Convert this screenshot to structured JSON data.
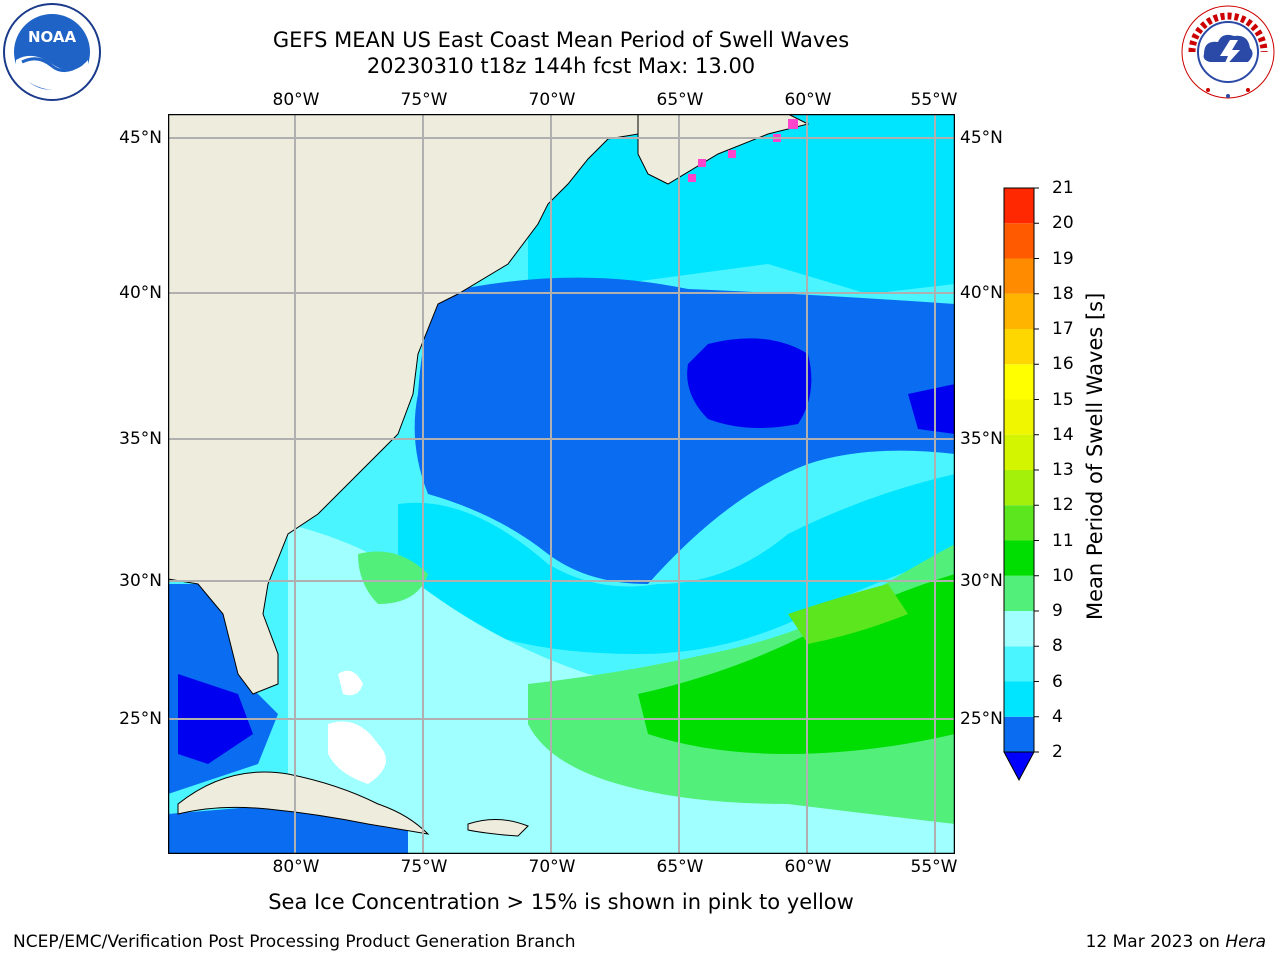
{
  "title": {
    "line1": "GEFS MEAN US East Coast Mean Period of Swell Waves",
    "line2": "20230310 t18z 144h fcst   Max: 13.00"
  },
  "map": {
    "lon_labels": [
      "80°W",
      "75°W",
      "70°W",
      "65°W",
      "60°W",
      "55°W"
    ],
    "lat_labels": [
      "45°N",
      "40°N",
      "35°N",
      "30°N",
      "25°N"
    ],
    "land_color": "#eeeddd",
    "grid_color": "#b0b0b0"
  },
  "colorbar": {
    "title": "Mean Period of Swell Waves [s]",
    "ticks": [
      "2",
      "4",
      "6",
      "8",
      "9",
      "10",
      "11",
      "12",
      "13",
      "14",
      "15",
      "16",
      "17",
      "18",
      "19",
      "20",
      "21"
    ],
    "colors": [
      "#0a6cf0",
      "#00e5ff",
      "#4bf5ff",
      "#a0ffff",
      "#52f07a",
      "#00dd00",
      "#5be61e",
      "#a5f00a",
      "#d4f500",
      "#f0f500",
      "#ffff00",
      "#ffd700",
      "#ffb400",
      "#ff8c00",
      "#ff5a00",
      "#ff2800",
      "#ff0000"
    ],
    "under_color": "#0000ff"
  },
  "footer": {
    "note": "Sea Ice Concentration > 15% is shown in pink to yellow",
    "credit_left": "NCEP/EMC/Verification Post Processing Product Generation Branch",
    "credit_right_prefix": "12 Mar 2023 on ",
    "credit_right_host": "Hera"
  },
  "logos": {
    "noaa": "NOAA",
    "nws": "NATIONAL WEATHER SERVICE"
  }
}
